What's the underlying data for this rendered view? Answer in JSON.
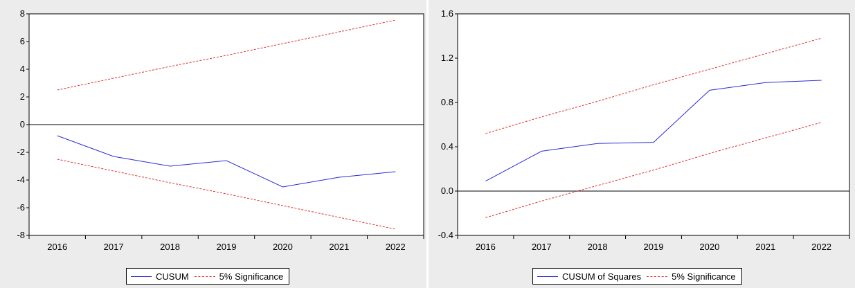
{
  "chart_data": [
    {
      "type": "line",
      "x": [
        "2016",
        "2017",
        "2018",
        "2019",
        "2020",
        "2021",
        "2022"
      ],
      "ylim": [
        -8,
        8
      ],
      "yticks": [
        "8",
        "6",
        "4",
        "2",
        "0",
        "-2",
        "-4",
        "-6",
        "-8"
      ],
      "yticks_values": [
        8,
        6,
        4,
        2,
        0,
        -2,
        -4,
        -6,
        -8
      ],
      "zero_line": 0,
      "series": [
        {
          "name": "CUSUM",
          "values": [
            -0.8,
            -2.3,
            -3.0,
            -2.6,
            -4.5,
            -3.8,
            -3.4
          ],
          "color": "#2b2bd6",
          "style": "solid"
        },
        {
          "name": "5% Significance",
          "values": [
            2.5,
            3.35,
            4.2,
            5.0,
            5.85,
            6.7,
            7.55
          ],
          "color": "#e03030",
          "style": "dashed"
        },
        {
          "name": "",
          "values": [
            -2.5,
            -3.35,
            -4.2,
            -5.0,
            -5.85,
            -6.7,
            -7.55
          ],
          "color": "#e03030",
          "style": "dashed"
        }
      ],
      "legend": [
        "CUSUM",
        "5% Significance"
      ],
      "legend_position": "bottom"
    },
    {
      "type": "line",
      "x": [
        "2016",
        "2017",
        "2018",
        "2019",
        "2020",
        "2021",
        "2022"
      ],
      "ylim": [
        -0.4,
        1.6
      ],
      "yticks": [
        "1.6",
        "1.2",
        "0.8",
        "0.4",
        "0.0",
        "-0.4"
      ],
      "yticks_values": [
        1.6,
        1.2,
        0.8,
        0.4,
        0.0,
        -0.4
      ],
      "zero_line": 0,
      "series": [
        {
          "name": "CUSUM of Squares",
          "values": [
            0.09,
            0.36,
            0.43,
            0.44,
            0.91,
            0.98,
            1.0
          ],
          "color": "#2b2bd6",
          "style": "solid"
        },
        {
          "name": "5% Significance",
          "values": [
            0.52,
            0.67,
            0.81,
            0.96,
            1.1,
            1.24,
            1.38
          ],
          "color": "#e03030",
          "style": "dashed"
        },
        {
          "name": "",
          "values": [
            -0.24,
            -0.09,
            0.05,
            0.19,
            0.34,
            0.48,
            0.62
          ],
          "color": "#e03030",
          "style": "dashed"
        }
      ],
      "legend": [
        "CUSUM of Squares",
        "5% Significance"
      ],
      "legend_position": "bottom"
    }
  ]
}
